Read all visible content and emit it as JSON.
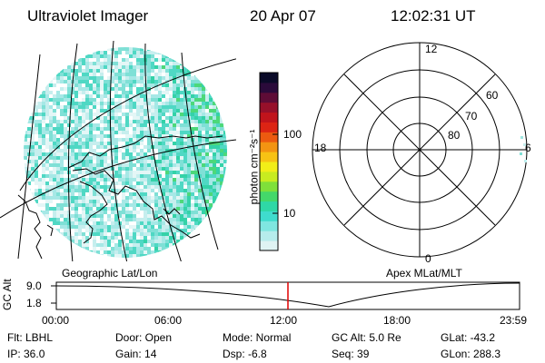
{
  "header": {
    "instrument": "Ultraviolet Imager",
    "date": "20 Apr 07",
    "time": "12:02:31 UT"
  },
  "left_panel": {
    "caption": "Geographic Lat/Lon"
  },
  "right_panel": {
    "caption": "Apex MLat/MLT",
    "mlt_labels": {
      "top": "12",
      "left": "18",
      "right": "6",
      "bottom": "0"
    },
    "lat_labels": [
      "60",
      "70",
      "80"
    ]
  },
  "colorbar": {
    "label": "photon cm⁻²s⁻¹",
    "ticks": [
      "100",
      "10"
    ],
    "scale": "log",
    "colors": [
      "#dff3f3",
      "#b6ecec",
      "#7fe6e0",
      "#3fdccd",
      "#2fd8a6",
      "#44d86a",
      "#7fe03a",
      "#c8ec20",
      "#f2ee18",
      "#f7c214",
      "#f39412",
      "#ec5a10",
      "#dc2414",
      "#c0141c",
      "#96102a",
      "#5e0c36",
      "#2a0a3a",
      "#0a0a28"
    ]
  },
  "timeline": {
    "ylabel": "GC Alt",
    "ytick_top": "9.0",
    "ytick_bottom": "1.8",
    "xticks": [
      "00:00",
      "06:00",
      "12:00",
      "18:00",
      "23:59"
    ],
    "current_marker_color": "#e00000"
  },
  "info": {
    "flt": "Flt: LBHL",
    "ip": "IP: 36.0",
    "door": "Door: Open",
    "gain": "Gain: 14",
    "mode": "Mode: Normal",
    "dsp": "Dsp:    -6.8",
    "gcalt": "GC Alt: 5.0 Re",
    "seq": "Seq: 39",
    "glat": "GLat: -43.2",
    "glon": "GLon: 288.3"
  }
}
